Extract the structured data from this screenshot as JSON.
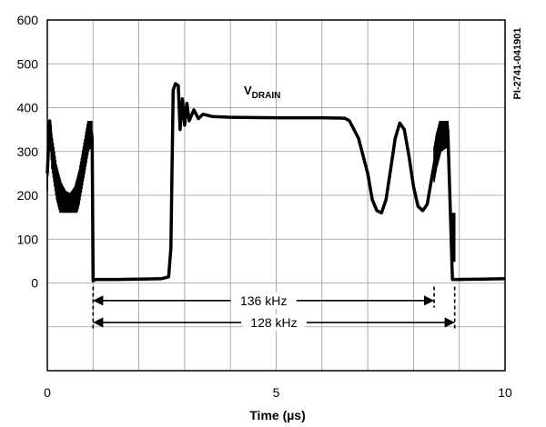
{
  "chart_data": {
    "type": "line",
    "xlabel": "Time (µs)",
    "ylabel": "",
    "xlim": [
      0,
      10
    ],
    "ylim": [
      -200,
      600
    ],
    "x_ticks": [
      "0",
      "5",
      "10"
    ],
    "y_ticks": [
      "600",
      "500",
      "400",
      "300",
      "200",
      "100",
      "0"
    ],
    "grid": true,
    "legend": "none",
    "series": [
      {
        "name": "V",
        "name_sub": "DRAIN",
        "color": "#000000",
        "points": [
          [
            0.0,
            250
          ],
          [
            0.05,
            370
          ],
          [
            0.1,
            300
          ],
          [
            0.2,
            230
          ],
          [
            0.3,
            190
          ],
          [
            0.4,
            170
          ],
          [
            0.5,
            165
          ],
          [
            0.6,
            180
          ],
          [
            0.7,
            220
          ],
          [
            0.8,
            280
          ],
          [
            0.9,
            340
          ],
          [
            0.95,
            350
          ],
          [
            0.98,
            330
          ],
          [
            1.0,
            5
          ],
          [
            1.05,
            8
          ],
          [
            1.5,
            8
          ],
          [
            2.0,
            9
          ],
          [
            2.5,
            10
          ],
          [
            2.65,
            14
          ],
          [
            2.7,
            80
          ],
          [
            2.75,
            440
          ],
          [
            2.8,
            455
          ],
          [
            2.86,
            450
          ],
          [
            2.9,
            350
          ],
          [
            2.95,
            420
          ],
          [
            3.0,
            360
          ],
          [
            3.05,
            410
          ],
          [
            3.1,
            370
          ],
          [
            3.2,
            395
          ],
          [
            3.3,
            375
          ],
          [
            3.4,
            385
          ],
          [
            3.6,
            380
          ],
          [
            4.0,
            378
          ],
          [
            5.0,
            377
          ],
          [
            6.0,
            377
          ],
          [
            6.5,
            376
          ],
          [
            6.6,
            370
          ],
          [
            6.8,
            330
          ],
          [
            7.0,
            250
          ],
          [
            7.1,
            190
          ],
          [
            7.2,
            165
          ],
          [
            7.3,
            160
          ],
          [
            7.4,
            190
          ],
          [
            7.5,
            260
          ],
          [
            7.6,
            330
          ],
          [
            7.7,
            365
          ],
          [
            7.8,
            350
          ],
          [
            7.9,
            290
          ],
          [
            8.0,
            220
          ],
          [
            8.1,
            175
          ],
          [
            8.2,
            165
          ],
          [
            8.3,
            180
          ],
          [
            8.4,
            240
          ],
          [
            8.5,
            300
          ],
          [
            8.6,
            340
          ],
          [
            8.75,
            350
          ],
          [
            8.85,
            8
          ],
          [
            9.0,
            8
          ],
          [
            9.5,
            9
          ],
          [
            10.0,
            10
          ]
        ],
        "noise_bands": [
          [
            0.0,
            1.0
          ],
          [
            8.45,
            8.9
          ]
        ]
      }
    ],
    "annotations": [
      {
        "text": "136 kHz",
        "x_from": 1.0,
        "x_to": 8.45,
        "y": -40
      },
      {
        "text": "128 kHz",
        "x_from": 1.0,
        "x_to": 8.9,
        "y": -90
      }
    ],
    "side_label": "PI-2741-041901"
  }
}
